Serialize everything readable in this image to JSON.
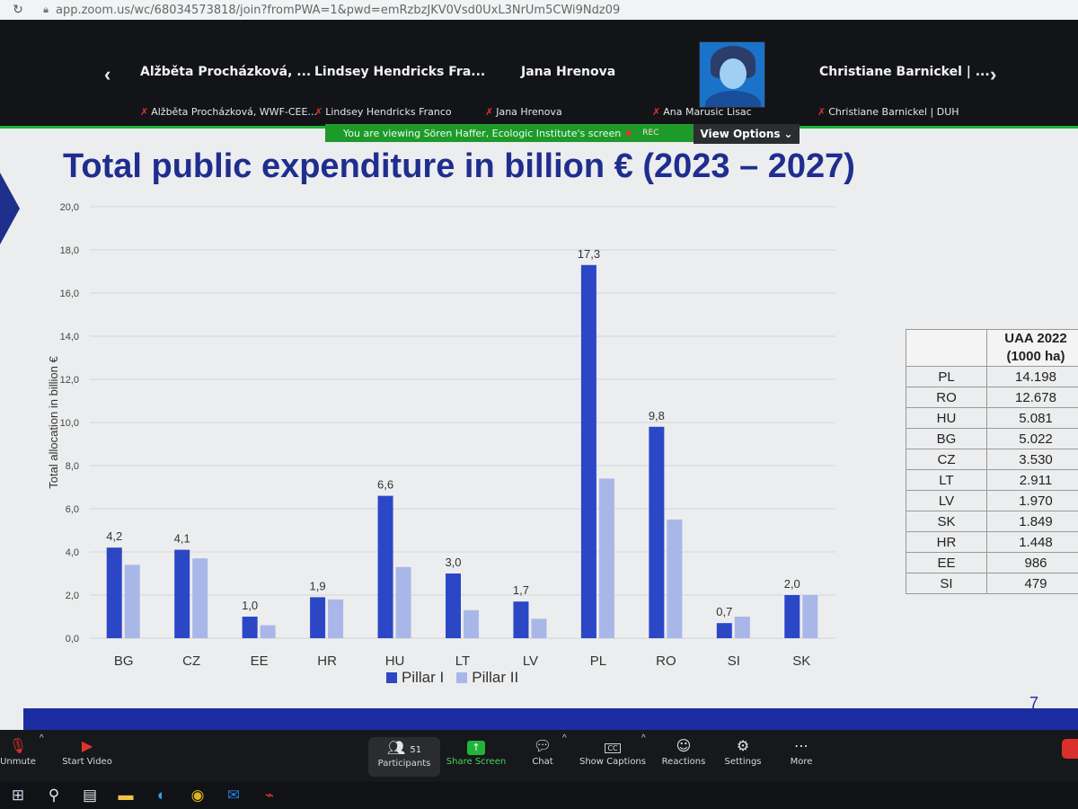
{
  "browser": {
    "url": "app.zoom.us/wc/68034573818/join?fromPWA=1&pwd=emRzbzJKV0Vsd0UxL3NrUm5CWi9Ndz09"
  },
  "gallery": {
    "tiles": [
      {
        "name": "Alžběta Procházková, ...",
        "sub": "Alžběta Procházková, WWF-CEE..."
      },
      {
        "name": "Lindsey Hendricks Fra...",
        "sub": "Lindsey Hendricks Franco"
      },
      {
        "name": "Jana Hrenova",
        "sub": "Jana Hrenova"
      },
      {
        "name": "",
        "sub": "Ana Marusic Lisac"
      },
      {
        "name": "Christiane Barnickel | ...",
        "sub": "Christiane Barnickel | DUH"
      }
    ]
  },
  "share_banner": {
    "text": "You are viewing Sören Haffer, Ecologic Institute's screen",
    "rec": "REC",
    "view_options": "View Options"
  },
  "slide": {
    "title": "Total public expenditure in billion € (2023 – 2027)",
    "page_number": "7",
    "legend": [
      "Pillar I",
      "Pillar II"
    ],
    "table": {
      "header": [
        "UAA 2022",
        "(1000 ha)"
      ],
      "rows": [
        {
          "country": "PL",
          "value": "14.198"
        },
        {
          "country": "RO",
          "value": "12.678"
        },
        {
          "country": "HU",
          "value": "5.081"
        },
        {
          "country": "BG",
          "value": "5.022"
        },
        {
          "country": "CZ",
          "value": "3.530"
        },
        {
          "country": "LT",
          "value": "2.911"
        },
        {
          "country": "LV",
          "value": "1.970"
        },
        {
          "country": "SK",
          "value": "1.849"
        },
        {
          "country": "HR",
          "value": "1.448"
        },
        {
          "country": "EE",
          "value": "986"
        },
        {
          "country": "SI",
          "value": "479"
        }
      ]
    }
  },
  "chart_data": {
    "type": "bar",
    "title": "Total public expenditure in billion € (2023 – 2027)",
    "ylabel": "Total allocation in billion €",
    "ylim": [
      0,
      20
    ],
    "yticks": [
      "0,0",
      "2,0",
      "4,0",
      "6,0",
      "8,0",
      "10,0",
      "12,0",
      "14,0",
      "16,0",
      "18,0",
      "20,0"
    ],
    "grid": true,
    "legend_position": "bottom",
    "categories": [
      "BG",
      "CZ",
      "EE",
      "HR",
      "HU",
      "LT",
      "LV",
      "PL",
      "RO",
      "SI",
      "SK"
    ],
    "series": [
      {
        "name": "Pillar I",
        "color": "#2c47c6",
        "values": [
          4.2,
          4.1,
          1.0,
          1.9,
          6.6,
          3.0,
          1.7,
          17.3,
          9.8,
          0.7,
          2.0
        ],
        "labels": [
          "4,2",
          "4,1",
          "1,0",
          "1,9",
          "6,6",
          "3,0",
          "1,7",
          "17,3",
          "9,8",
          "0,7",
          "2,0"
        ]
      },
      {
        "name": "Pillar II",
        "color": "#a9b7e8",
        "values": [
          3.4,
          3.7,
          0.6,
          1.8,
          3.3,
          1.3,
          0.9,
          7.4,
          5.5,
          1.0,
          2.0
        ]
      }
    ]
  },
  "toolbar": {
    "unmute": "Unmute",
    "start_video": "Start Video",
    "participants": "Participants",
    "participants_count": "51",
    "share_screen": "Share Screen",
    "chat": "Chat",
    "captions": "Show Captions",
    "reactions": "Reactions",
    "settings": "Settings",
    "more": "More",
    "cc": "CC"
  }
}
